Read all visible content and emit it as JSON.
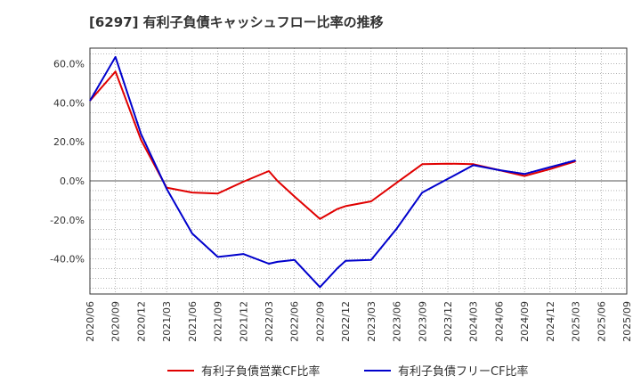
{
  "chart_data": {
    "type": "line",
    "title": "[6297]  有利子負債キャッシュフロー比率の推移",
    "x": [
      "2020/06",
      "2020/09",
      "2020/12",
      "2021/03",
      "2021/06",
      "2021/09",
      "2021/12",
      "2022/03",
      "2022/06",
      "2022/09",
      "2022/12",
      "2023/03",
      "2023/06",
      "2023/09",
      "2023/12",
      "2024/03",
      "2024/06",
      "2024/09",
      "2024/12",
      "2025/03",
      "2025/06",
      "2025/09"
    ],
    "y_ticks": [
      "60.0%",
      "40.0%",
      "20.0%",
      "0.0%",
      "-20.0%",
      "-40.0%"
    ],
    "y_tick_values": [
      60,
      40,
      20,
      0,
      -20,
      -40
    ],
    "ylim": [
      -58,
      68
    ],
    "grid": true,
    "legend_position": "bottom",
    "series": [
      {
        "name": "有利子負債営業CF比率",
        "color": "#e00000",
        "points": [
          [
            "2020/06",
            41
          ],
          [
            "2020/09",
            56
          ],
          [
            "2020/12",
            21
          ],
          [
            "2021/03",
            -3.5
          ],
          [
            "2021/06",
            -6
          ],
          [
            "2021/09",
            -6.5
          ],
          [
            "2021/12",
            -0.5
          ],
          [
            "2022/03",
            5
          ],
          [
            "2022/04",
            0
          ],
          [
            "2022/06",
            -8
          ],
          [
            "2022/09",
            -19.5
          ],
          [
            "2022/11",
            -14.5
          ],
          [
            "2022/12",
            -13
          ],
          [
            "2023/03",
            -10.5
          ],
          [
            "2023/06",
            -1
          ],
          [
            "2023/09",
            8.5
          ],
          [
            "2023/12",
            8.8
          ],
          [
            "2024/03",
            8.5
          ],
          [
            "2024/06",
            5.5
          ],
          [
            "2024/09",
            2.5
          ],
          [
            "2024/12",
            6
          ],
          [
            "2025/03",
            10
          ]
        ]
      },
      {
        "name": "有利子負債フリーCF比率",
        "color": "#0000cc",
        "points": [
          [
            "2020/06",
            41
          ],
          [
            "2020/09",
            63.5
          ],
          [
            "2020/12",
            24
          ],
          [
            "2021/03",
            -4
          ],
          [
            "2021/06",
            -27
          ],
          [
            "2021/09",
            -39
          ],
          [
            "2021/12",
            -37.5
          ],
          [
            "2022/03",
            -42.5
          ],
          [
            "2022/04",
            -41.5
          ],
          [
            "2022/06",
            -40.5
          ],
          [
            "2022/09",
            -54.5
          ],
          [
            "2022/11",
            -45
          ],
          [
            "2022/12",
            -41
          ],
          [
            "2023/03",
            -40.5
          ],
          [
            "2023/06",
            -24.5
          ],
          [
            "2023/09",
            -6
          ],
          [
            "2023/12",
            1
          ],
          [
            "2024/03",
            8
          ],
          [
            "2024/06",
            5.5
          ],
          [
            "2024/09",
            3.5
          ],
          [
            "2024/12",
            7
          ],
          [
            "2025/03",
            10.5
          ]
        ]
      }
    ]
  }
}
